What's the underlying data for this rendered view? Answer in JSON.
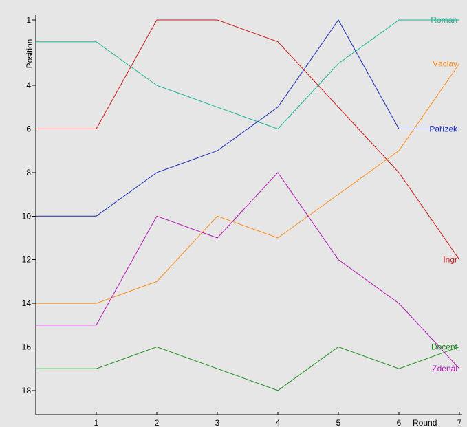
{
  "chart_data": {
    "type": "line",
    "xlabel": "Round",
    "ylabel": "Position",
    "x": [
      0,
      1,
      2,
      3,
      4,
      5,
      6,
      7
    ],
    "xlim": [
      0,
      7
    ],
    "ylim": [
      1,
      19
    ],
    "y_inverted": true,
    "grid": false,
    "background": "#e6e6e6",
    "x_tick_labels": [
      "1",
      "2",
      "3",
      "4",
      "5",
      "6",
      "7"
    ],
    "y_tick_labels": [
      "1",
      "4",
      "6",
      "8",
      "10",
      "12",
      "14",
      "16",
      "18"
    ],
    "series": [
      {
        "name": "Roman",
        "color": "#1ab394",
        "values": [
          2,
          2,
          4,
          5,
          6,
          3,
          1,
          1
        ]
      },
      {
        "name": "Václav",
        "color": "#ff8c1a",
        "values": [
          14,
          14,
          13,
          10,
          11,
          9,
          7,
          3
        ]
      },
      {
        "name": "Pařízek",
        "color": "#1a2db3",
        "values": [
          10,
          10,
          8,
          7,
          5,
          1,
          6,
          6
        ]
      },
      {
        "name": "Ingr",
        "color": "#cc1a1a",
        "values": [
          6,
          6,
          1,
          1,
          2,
          5,
          8,
          12
        ]
      },
      {
        "name": "Docent",
        "color": "#1a8c1a",
        "values": [
          17,
          17,
          16,
          17,
          18,
          16,
          17,
          16
        ]
      },
      {
        "name": "Zdenál",
        "color": "#b31ab3",
        "values": [
          15,
          15,
          10,
          11,
          8,
          12,
          14,
          17
        ]
      }
    ]
  }
}
